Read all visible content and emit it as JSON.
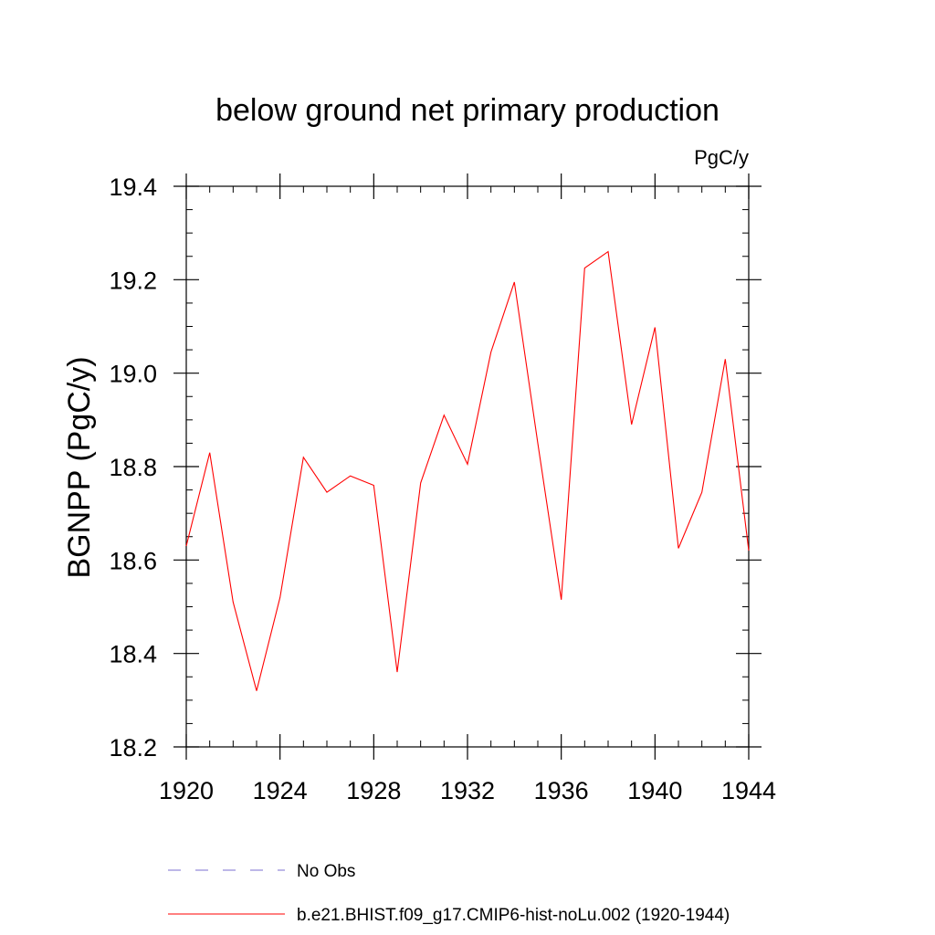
{
  "chart_data": {
    "type": "line",
    "title": "below ground net primary production",
    "units_label": "PgC/y",
    "ylabel": "BGNPP  (PgC/y)",
    "xlabel": "",
    "xlim": [
      1920,
      1944
    ],
    "ylim": [
      18.2,
      19.4
    ],
    "x_ticks": [
      1920,
      1924,
      1928,
      1932,
      1936,
      1940,
      1944
    ],
    "y_ticks": [
      "18.2",
      "18.4",
      "18.6",
      "18.8",
      "19.0",
      "19.2",
      "19.4"
    ],
    "x_minor_step": 1,
    "y_minor_step": 0.05,
    "grid": false,
    "legend_position": "bottom",
    "series": [
      {
        "name": "b.e21.BHIST.f09_g17.CMIP6-hist-noLu.002 (1920-1944)",
        "color": "#ff0000",
        "style": "solid",
        "x": [
          1920,
          1921,
          1922,
          1923,
          1924,
          1925,
          1926,
          1927,
          1928,
          1929,
          1930,
          1931,
          1932,
          1933,
          1934,
          1935,
          1936,
          1937,
          1938,
          1939,
          1940,
          1941,
          1942,
          1943,
          1944
        ],
        "y": [
          18.63,
          18.83,
          18.51,
          18.32,
          18.52,
          18.82,
          18.745,
          18.78,
          18.76,
          18.36,
          18.765,
          18.91,
          18.805,
          19.045,
          19.195,
          18.85,
          18.515,
          19.225,
          19.26,
          18.89,
          19.098,
          18.625,
          18.745,
          19.03,
          18.62
        ]
      }
    ],
    "legend": [
      {
        "name": "No Obs",
        "color": "#7b6fd0",
        "style": "dashed"
      },
      {
        "name": "b.e21.BHIST.f09_g17.CMIP6-hist-noLu.002 (1920-1944)",
        "color": "#ff0000",
        "style": "solid"
      }
    ]
  }
}
